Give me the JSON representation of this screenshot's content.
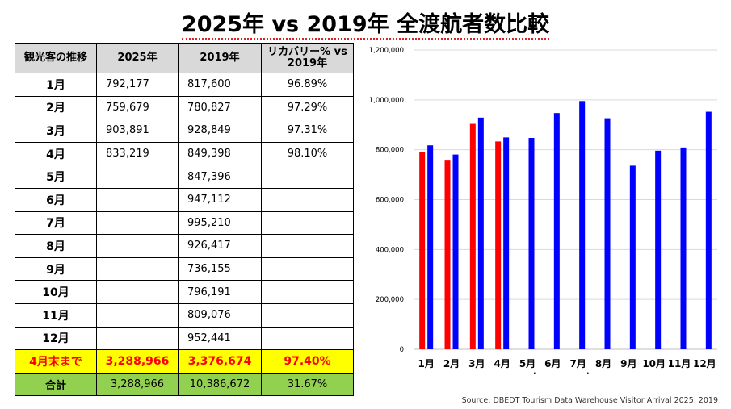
{
  "title": "2025年 vs 2019年 全渡航者数比較",
  "table": {
    "headers": [
      "観光客の推移",
      "2025年",
      "2019年",
      "リカバリー% vs 2019年"
    ],
    "rows": [
      {
        "month": "1月",
        "v2025": "792,177",
        "v2019": "817,600",
        "recovery": "96.89%"
      },
      {
        "month": "2月",
        "v2025": "759,679",
        "v2019": "780,827",
        "recovery": "97.29%"
      },
      {
        "month": "3月",
        "v2025": "903,891",
        "v2019": "928,849",
        "recovery": "97.31%"
      },
      {
        "month": "4月",
        "v2025": "833,219",
        "v2019": "849,398",
        "recovery": "98.10%"
      },
      {
        "month": "5月",
        "v2025": "",
        "v2019": "847,396",
        "recovery": ""
      },
      {
        "month": "6月",
        "v2025": "",
        "v2019": "947,112",
        "recovery": ""
      },
      {
        "month": "7月",
        "v2025": "",
        "v2019": "995,210",
        "recovery": ""
      },
      {
        "month": "8月",
        "v2025": "",
        "v2019": "926,417",
        "recovery": ""
      },
      {
        "month": "9月",
        "v2025": "",
        "v2019": "736,155",
        "recovery": ""
      },
      {
        "month": "10月",
        "v2025": "",
        "v2019": "796,191",
        "recovery": ""
      },
      {
        "month": "11月",
        "v2025": "",
        "v2019": "809,076",
        "recovery": ""
      },
      {
        "month": "12月",
        "v2025": "",
        "v2019": "952,441",
        "recovery": ""
      }
    ],
    "ytd": {
      "label": "4月末まで",
      "v2025": "3,288,966",
      "v2019": "3,376,674",
      "recovery": "97.40%"
    },
    "total": {
      "label": "合計",
      "v2025": "3,288,966",
      "v2019": "10,386,672",
      "recovery": "31.67%"
    }
  },
  "colors": {
    "series2025": "#ff0000",
    "series2019": "#0000ff",
    "grid": "#d9d9d9"
  },
  "chart_data": {
    "type": "bar",
    "categories": [
      "1月",
      "2月",
      "3月",
      "4月",
      "5月",
      "6月",
      "7月",
      "8月",
      "9月",
      "10月",
      "11月",
      "12月"
    ],
    "series": [
      {
        "name": "2025年",
        "values": [
          792177,
          759679,
          903891,
          833219,
          null,
          null,
          null,
          null,
          null,
          null,
          null,
          null
        ]
      },
      {
        "name": "2019年",
        "values": [
          817600,
          780827,
          928849,
          849398,
          847396,
          947112,
          995210,
          926417,
          736155,
          796191,
          809076,
          952441
        ]
      }
    ],
    "ylim": [
      0,
      1200000
    ],
    "yticks": [
      "0",
      "200,000",
      "400,000",
      "600,000",
      "800,000",
      "1,000,000",
      "1,200,000"
    ],
    "grid": true,
    "legend": "bottom"
  },
  "source": "Source: DBEDT Tourism Data Warehouse Visitor Arrival 2025, 2019"
}
